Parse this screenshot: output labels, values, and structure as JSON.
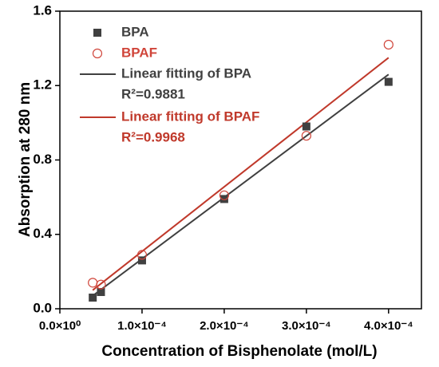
{
  "chart_data": {
    "type": "scatter",
    "xlabel": "Concentration of Bisphenolate (mol/L)",
    "ylabel": "Absorption at 280 nm",
    "xlim": [
      0,
      0.00044
    ],
    "ylim": [
      0,
      1.6
    ],
    "xticks": [
      {
        "value": 0,
        "label": "0.0×10⁰"
      },
      {
        "value": 0.0001,
        "label": "1.0×10⁻⁴"
      },
      {
        "value": 0.0002,
        "label": "2.0×10⁻⁴"
      },
      {
        "value": 0.0003,
        "label": "3.0×10⁻⁴"
      },
      {
        "value": 0.0004,
        "label": "4.0×10⁻⁴"
      }
    ],
    "yticks": [
      {
        "value": 0,
        "label": "0.0"
      },
      {
        "value": 0.4,
        "label": "0.4"
      },
      {
        "value": 0.8,
        "label": "0.8"
      },
      {
        "value": 1.2,
        "label": "1.2"
      },
      {
        "value": 1.6,
        "label": "1.6"
      }
    ],
    "series": [
      {
        "name": "BPA",
        "color": "#404040",
        "marker": "square",
        "x": [
          4e-05,
          5e-05,
          0.0001,
          0.0002,
          0.0003,
          0.0004
        ],
        "values": [
          0.06,
          0.09,
          0.26,
          0.59,
          0.98,
          1.22
        ]
      },
      {
        "name": "BPAF",
        "color": "#d0453a",
        "marker": "open-circle",
        "x": [
          4e-05,
          5e-05,
          0.0001,
          0.0002,
          0.0003,
          0.0004
        ],
        "values": [
          0.14,
          0.13,
          0.29,
          0.61,
          0.93,
          1.42
        ]
      },
      {
        "name": "Linear fitting of BPA",
        "color": "#404040",
        "marker": "line",
        "r2": "R²=0.9881",
        "x": [
          4e-05,
          0.0004
        ],
        "values": [
          0.07,
          1.26
        ]
      },
      {
        "name": "Linear fitting of BPAF",
        "color": "#c0392b",
        "marker": "line",
        "r2": "R²=0.9968",
        "x": [
          4e-05,
          0.0004
        ],
        "values": [
          0.1,
          1.35
        ]
      }
    ]
  }
}
